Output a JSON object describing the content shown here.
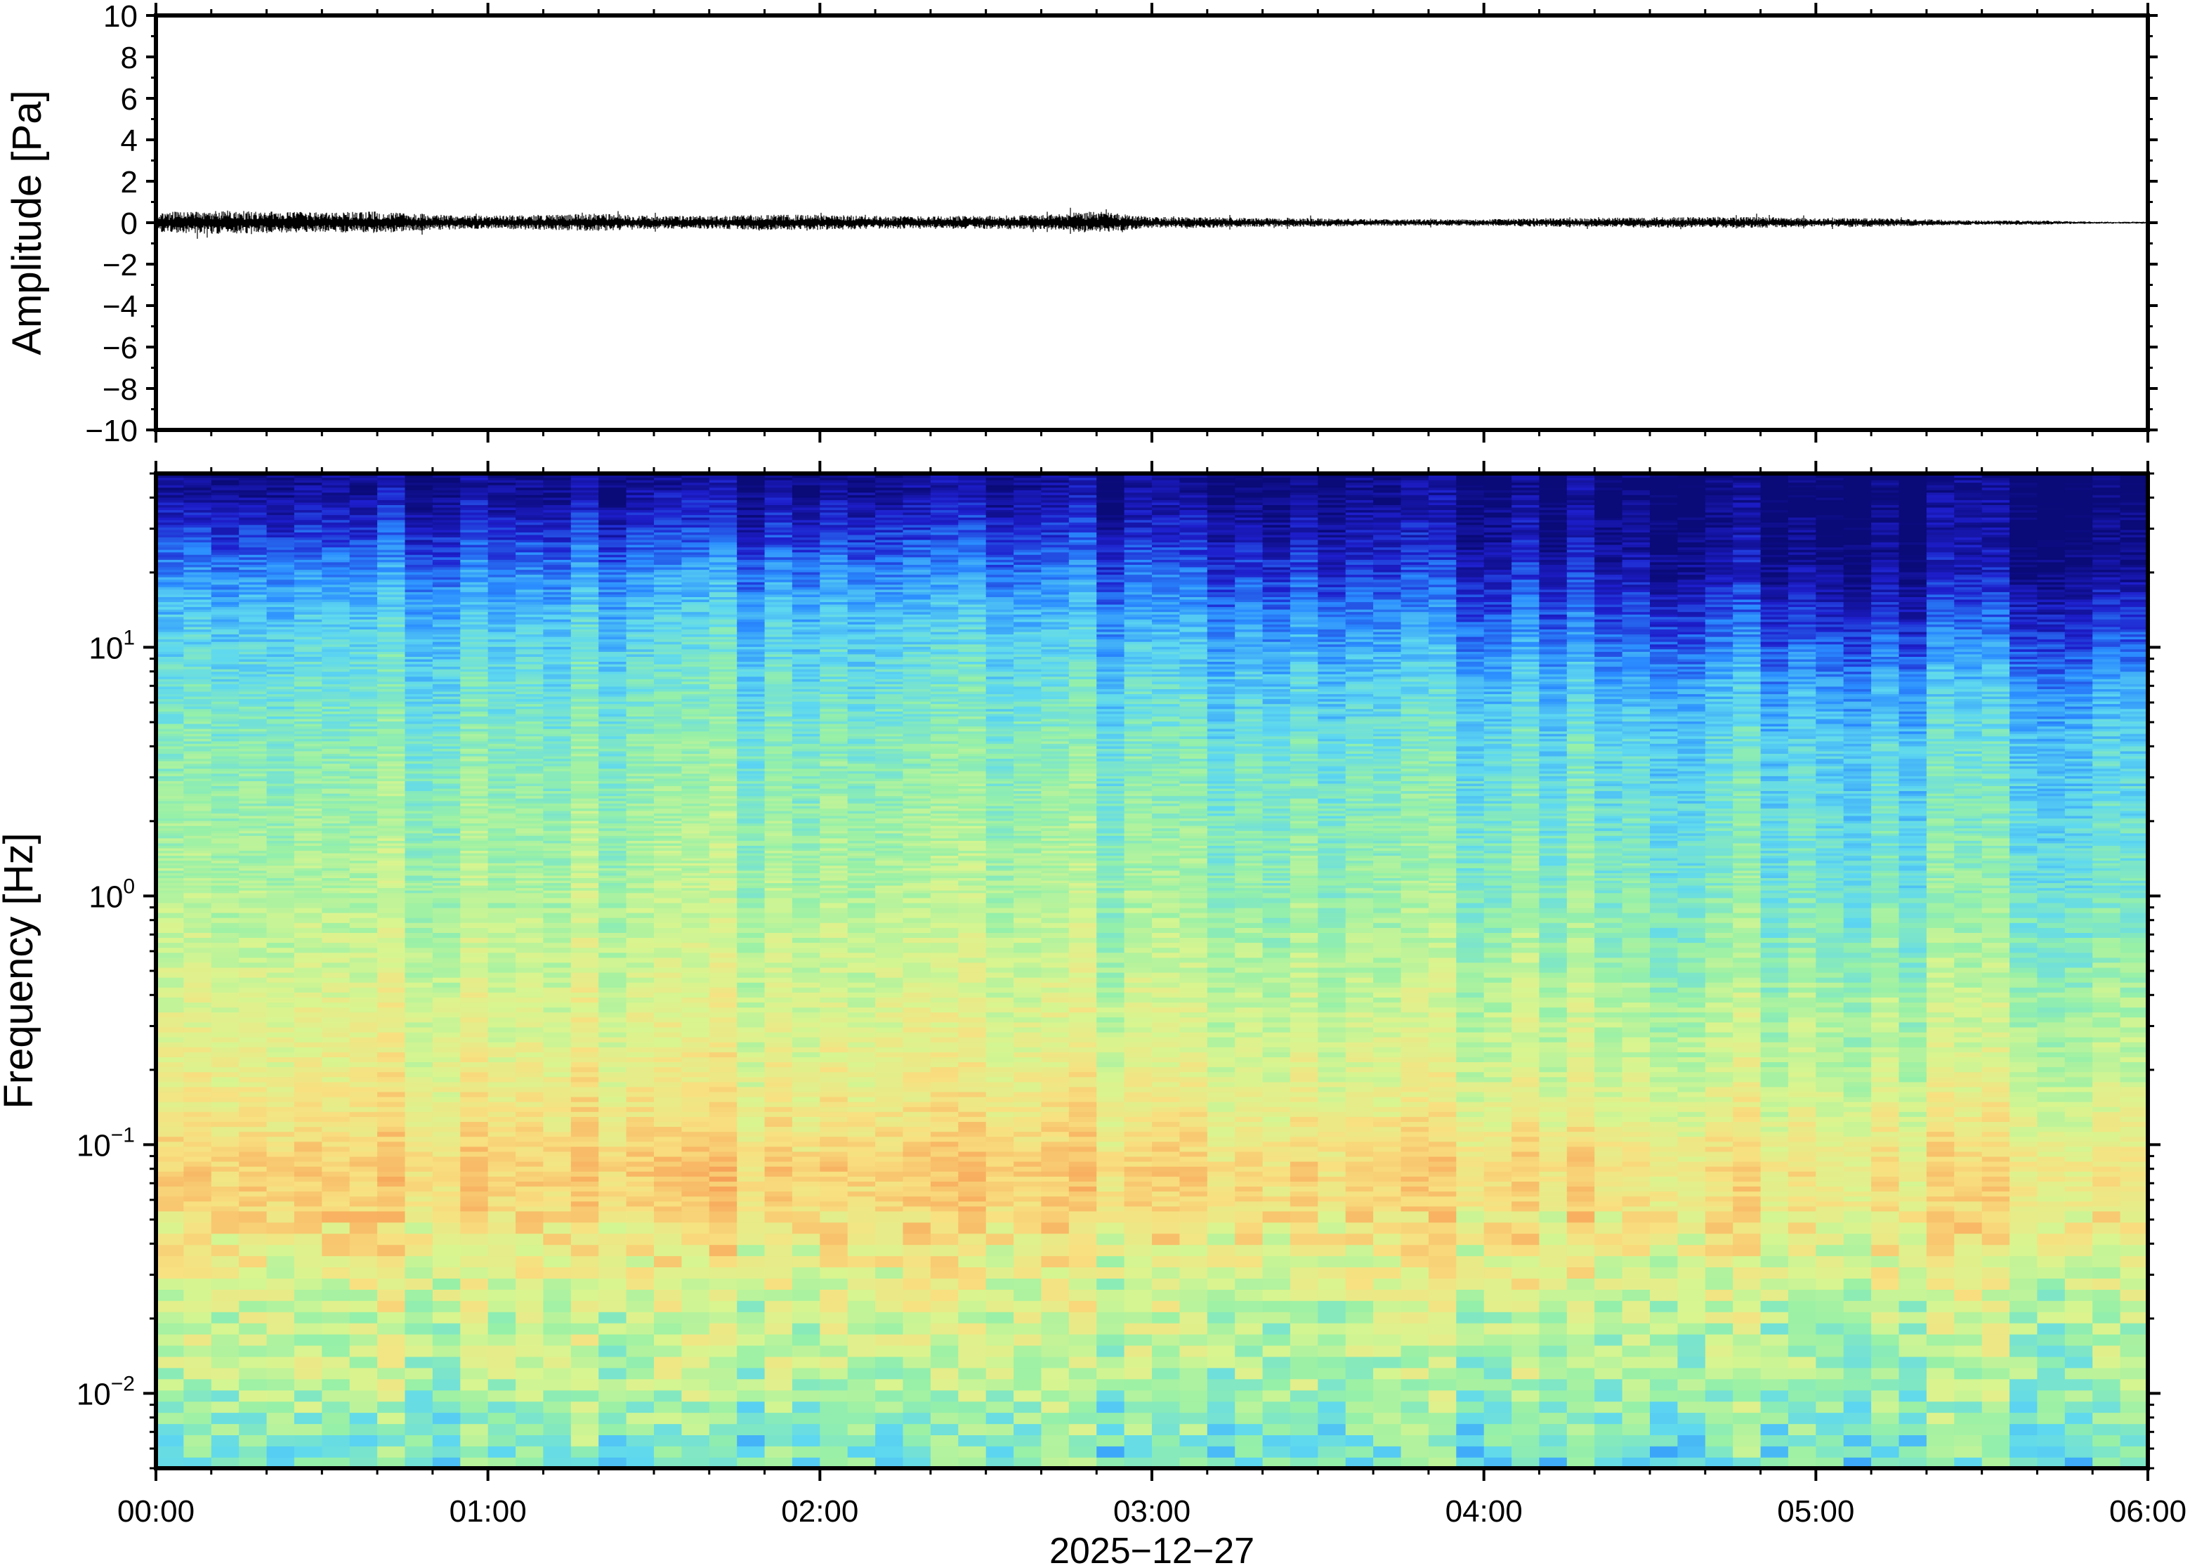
{
  "chart_data": [
    {
      "type": "line",
      "panel": "waveform",
      "ylabel": "Amplitude [Pa]",
      "ylim": [
        -10,
        10
      ],
      "yticks": [
        10,
        8,
        6,
        4,
        2,
        0,
        -2,
        -4,
        -6,
        -8,
        -10
      ],
      "ytick_labels": [
        "10",
        "8",
        "6",
        "4",
        "2",
        "0",
        "−2",
        "−4",
        "−6",
        "−8",
        "−10"
      ],
      "line_color": "#000000",
      "envelope": {
        "x": [
          "00:00",
          "00:10",
          "00:20",
          "00:30",
          "00:40",
          "00:50",
          "01:00",
          "01:10",
          "01:20",
          "01:30",
          "01:40",
          "01:50",
          "02:00",
          "02:10",
          "02:20",
          "02:30",
          "02:40",
          "02:50",
          "03:00",
          "03:10",
          "03:20",
          "03:30",
          "03:40",
          "03:50",
          "04:00",
          "04:10",
          "04:20",
          "04:30",
          "04:40",
          "04:50",
          "05:00",
          "05:10",
          "05:20",
          "05:30",
          "05:40",
          "05:50",
          "06:00"
        ],
        "amplitude": [
          0.9,
          1.1,
          1.0,
          0.9,
          1.0,
          0.7,
          0.6,
          0.7,
          0.8,
          0.6,
          0.6,
          0.7,
          0.7,
          0.6,
          0.6,
          0.6,
          0.7,
          1.0,
          0.5,
          0.5,
          0.4,
          0.4,
          0.3,
          0.3,
          0.3,
          0.4,
          0.4,
          0.5,
          0.5,
          0.5,
          0.4,
          0.4,
          0.3,
          0.2,
          0.2,
          0.1,
          0.1
        ]
      }
    },
    {
      "type": "heatmap",
      "panel": "spectrogram",
      "ylabel": "Frequency [Hz]",
      "yscale": "log",
      "ylim": [
        0.005,
        50
      ],
      "yticks": [
        0.01,
        0.1,
        1,
        10
      ],
      "ytick_labels": [
        [
          "10",
          "−2"
        ],
        [
          "10",
          "−1"
        ],
        [
          "10",
          "0"
        ],
        [
          "10",
          "1"
        ]
      ],
      "xlabel": "2025−12−27",
      "xlim": [
        "00:00",
        "06:00"
      ],
      "xtick_labels": [
        "00:00",
        "01:00",
        "02:00",
        "03:00",
        "04:00",
        "05:00",
        "06:00"
      ],
      "colormap": [
        "#0a0a78",
        "#1e1ecc",
        "#2a8cff",
        "#5ed8f0",
        "#96f0a8",
        "#d8f590",
        "#f8e080",
        "#f8b060",
        "#f07840"
      ],
      "power_profile": {
        "freq_hz": [
          0.006,
          0.008,
          0.012,
          0.02,
          0.03,
          0.05,
          0.08,
          0.12,
          0.2,
          0.35,
          0.6,
          1,
          2,
          4,
          7,
          12,
          20,
          30,
          45
        ],
        "level_early": [
          0.46,
          0.5,
          0.58,
          0.6,
          0.66,
          0.76,
          0.8,
          0.74,
          0.68,
          0.64,
          0.6,
          0.56,
          0.52,
          0.47,
          0.42,
          0.36,
          0.26,
          0.14,
          0.04
        ],
        "level_late": [
          0.44,
          0.48,
          0.54,
          0.58,
          0.64,
          0.72,
          0.74,
          0.68,
          0.6,
          0.56,
          0.5,
          0.46,
          0.42,
          0.38,
          0.3,
          0.18,
          0.06,
          0.02,
          0.0
        ]
      }
    }
  ]
}
